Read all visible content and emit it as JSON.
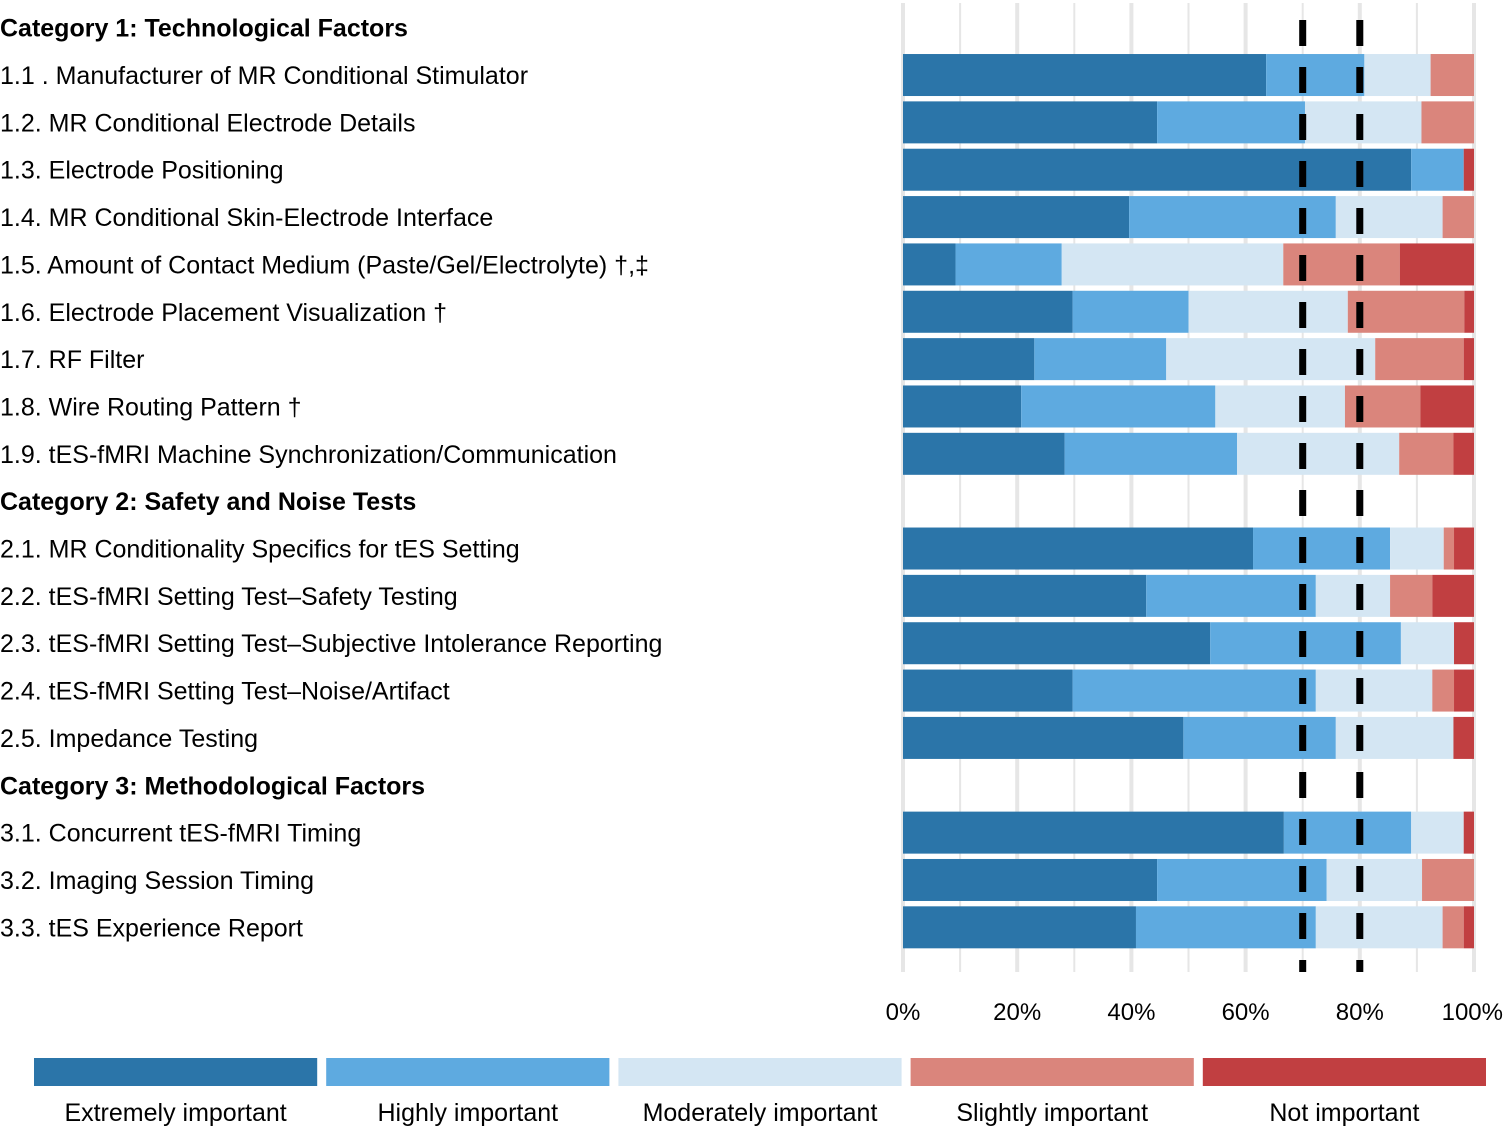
{
  "chart_data": {
    "type": "bar",
    "orientation": "horizontal",
    "stacked": true,
    "xlim": [
      0,
      100
    ],
    "x_ticks": [
      "0%",
      "20%",
      "40%",
      "60%",
      "80%",
      "100%"
    ],
    "grid": true,
    "reference_lines": [
      70,
      80
    ],
    "legend_position": "bottom",
    "colors": [
      "#2b75a9",
      "#5eaae0",
      "#d4e6f3",
      "#da857c",
      "#c13f41"
    ],
    "series": [
      {
        "name": "Extremely important"
      },
      {
        "name": "Highly important"
      },
      {
        "name": "Moderately important"
      },
      {
        "name": "Slightly important"
      },
      {
        "name": "Not important"
      }
    ],
    "rows": [
      {
        "kind": "category",
        "label": "Category 1: Technological Factors"
      },
      {
        "kind": "item",
        "label": "1.1 . Manufacturer of MR Conditional Stimulator",
        "values": [
          63.6,
          17.2,
          11.6,
          7.6,
          0
        ]
      },
      {
        "kind": "item",
        "label": "1.2. MR Conditional Electrode Details",
        "values": [
          44.5,
          25.9,
          20.4,
          9.2,
          0
        ]
      },
      {
        "kind": "item",
        "label": "1.3. Electrode Positioning",
        "values": [
          89.0,
          9.2,
          0,
          0,
          1.8
        ]
      },
      {
        "kind": "item",
        "label": "1.4. MR Conditional Skin-Electrode Interface",
        "values": [
          39.6,
          36.2,
          18.7,
          5.5,
          0
        ]
      },
      {
        "kind": "item",
        "label": "1.5. Amount of Contact Medium (Paste/Gel/Electrolyte) †,‡",
        "values": [
          9.2,
          18.6,
          38.8,
          20.4,
          13.0
        ]
      },
      {
        "kind": "item",
        "label": "1.6. Electrode Placement Visualization †",
        "values": [
          29.7,
          20.3,
          27.9,
          20.4,
          1.7
        ]
      },
      {
        "kind": "item",
        "label": "1.7. RF Filter",
        "values": [
          23.0,
          23.1,
          36.6,
          15.5,
          1.8
        ]
      },
      {
        "kind": "item",
        "label": "1.8. Wire Routing Pattern †",
        "values": [
          20.7,
          34.0,
          22.7,
          13.2,
          9.4
        ]
      },
      {
        "kind": "item",
        "label": "1.9. tES-fMRI Machine Synchronization/Communication",
        "values": [
          28.3,
          30.2,
          28.4,
          9.5,
          3.6
        ]
      },
      {
        "kind": "category",
        "label": "Category 2: Safety and Noise Tests"
      },
      {
        "kind": "item",
        "label": "2.1. MR Conditionality Specifics for tES Setting",
        "values": [
          61.3,
          24.0,
          9.4,
          1.8,
          3.5
        ]
      },
      {
        "kind": "item",
        "label": "2.2. tES-fMRI Setting Test–Safety Testing",
        "values": [
          42.6,
          29.7,
          13.0,
          7.4,
          7.3
        ]
      },
      {
        "kind": "item",
        "label": "2.3. tES-fMRI Setting Test–Subjective Intolerance Reporting",
        "values": [
          53.8,
          33.4,
          9.3,
          0,
          3.5
        ]
      },
      {
        "kind": "item",
        "label": "2.4. tES-fMRI Setting Test–Noise/Artifact",
        "values": [
          29.7,
          42.6,
          20.4,
          3.8,
          3.5
        ]
      },
      {
        "kind": "item",
        "label": "2.5. Impedance Testing",
        "values": [
          49.1,
          26.7,
          20.6,
          0,
          3.6
        ]
      },
      {
        "kind": "category",
        "label": "Category 3: Methodological Factors"
      },
      {
        "kind": "item",
        "label": "3.1. Concurrent tES-fMRI Timing",
        "values": [
          66.7,
          22.3,
          9.2,
          0,
          1.8
        ]
      },
      {
        "kind": "item",
        "label": "3.2. Imaging Session Timing",
        "values": [
          44.5,
          29.7,
          16.7,
          9.1,
          0
        ]
      },
      {
        "kind": "item",
        "label": "3.3. tES Experience Report",
        "values": [
          40.8,
          31.5,
          22.2,
          3.7,
          1.8
        ]
      }
    ]
  }
}
